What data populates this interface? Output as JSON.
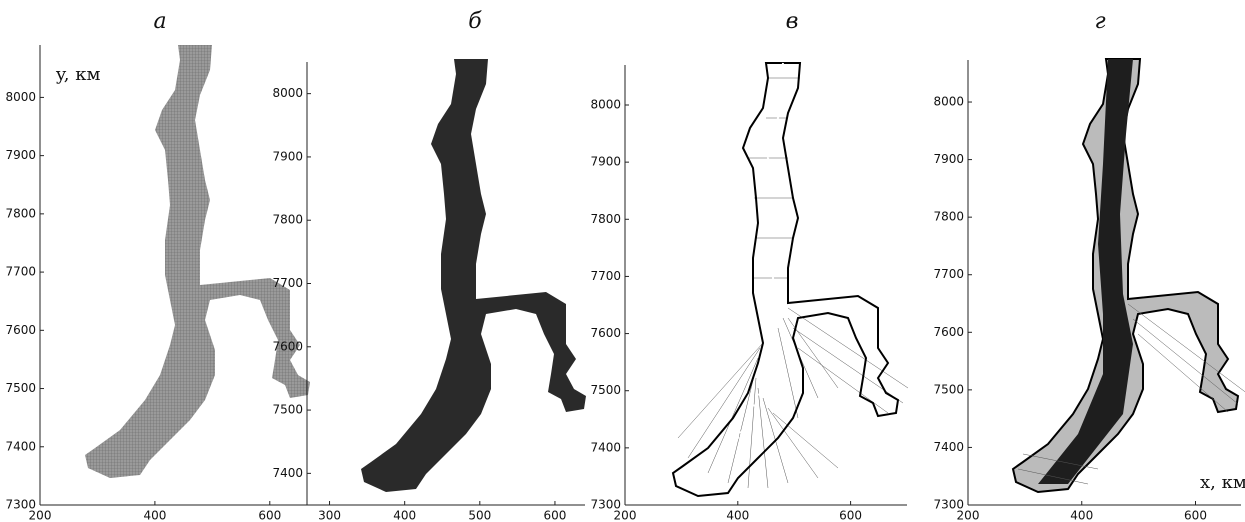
{
  "chart_data": [
    {
      "type": "map",
      "title": "а",
      "ylabel": "y, км",
      "xlim": [
        200,
        670
      ],
      "ylim": [
        7300,
        8090
      ],
      "xticks": [
        200,
        400,
        600
      ],
      "yticks": [
        7300,
        7400,
        7500,
        7600,
        7700,
        7800,
        7900,
        8000
      ]
    },
    {
      "type": "map",
      "title": "б",
      "xlim": [
        270,
        640
      ],
      "ylim": [
        7350,
        8050
      ],
      "xticks": [
        300,
        400,
        500,
        600
      ],
      "yticks": [
        7400,
        7500,
        7600,
        7700,
        7800,
        7900,
        8000
      ]
    },
    {
      "type": "map",
      "title": "в",
      "xlim": [
        200,
        700
      ],
      "ylim": [
        7300,
        8070
      ],
      "xticks": [
        200,
        400,
        600
      ],
      "yticks": [
        7300,
        7400,
        7500,
        7600,
        7700,
        7800,
        7900,
        8000
      ]
    },
    {
      "type": "map",
      "title": "г",
      "xlabel": "x, км",
      "xlim": [
        200,
        680
      ],
      "ylim": [
        7300,
        8073
      ],
      "xticks": [
        200,
        400,
        600
      ],
      "yticks": [
        7300,
        7400,
        7500,
        7600,
        7700,
        7800,
        7900,
        8000
      ]
    }
  ]
}
